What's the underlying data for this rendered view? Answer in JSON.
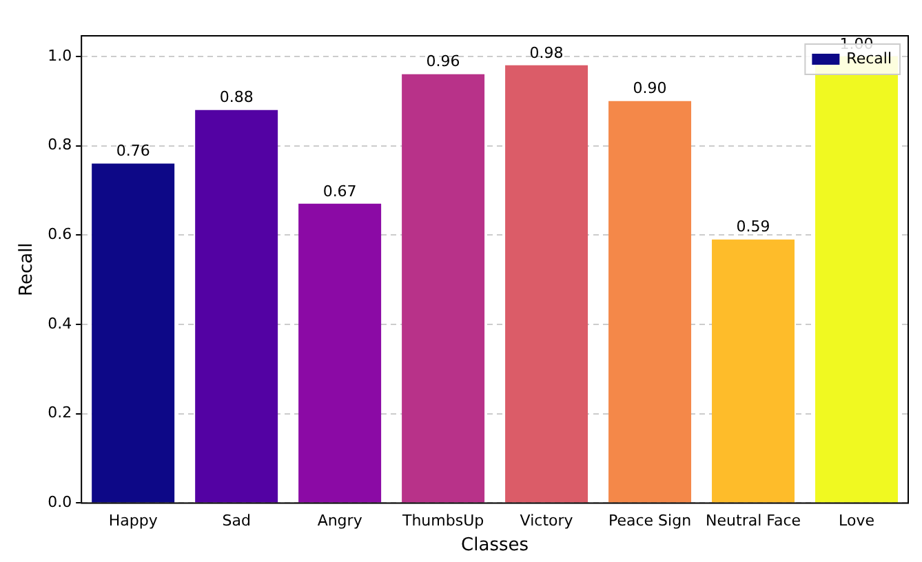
{
  "chart_data": {
    "type": "bar",
    "xlabel": "Classes",
    "ylabel": "Recall",
    "categories": [
      "Happy",
      "Sad",
      "Angry",
      "ThumbsUp",
      "Victory",
      "Peace Sign",
      "Neutral Face",
      "Love"
    ],
    "series": [
      {
        "name": "Recall",
        "color": "#0d0887",
        "colors": [
          "#0d0887",
          "#5302a3",
          "#8b0aa5",
          "#b83289",
          "#db5c68",
          "#f48849",
          "#febc2a",
          "#f0f921"
        ],
        "values": [
          0.76,
          0.88,
          0.67,
          0.96,
          0.98,
          0.9,
          0.59,
          1.0
        ],
        "value_labels": [
          "0.76",
          "0.88",
          "0.67",
          "0.96",
          "0.98",
          "0.90",
          "0.59",
          "1.00"
        ]
      }
    ],
    "ylim": [
      0,
      1.046
    ],
    "yticks": [
      {
        "value": 0,
        "label": "0.0"
      },
      {
        "value": 0.2,
        "label": "0.2"
      },
      {
        "value": 0.4,
        "label": "0.4"
      },
      {
        "value": 0.6,
        "label": "0.6"
      },
      {
        "value": 0.8,
        "label": "0.8"
      },
      {
        "value": 1.0,
        "label": "1.0"
      }
    ],
    "grid": "y",
    "legend": "top right"
  }
}
